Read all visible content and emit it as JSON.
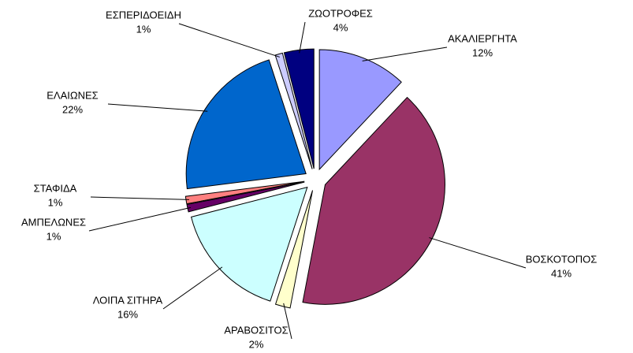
{
  "chart_data": {
    "type": "pie",
    "categories": [
      "ΑΚΑΛΙΕΡΓΗΤΑ",
      "ΒΟΣΚΟΤΟΠΟΣ",
      "ΑΡΑΒΟΣΙΤΟΣ",
      "ΛΟΙΠΑ ΣΙΤΗΡΑ",
      "ΑΜΠΕΛΩΝΕΣ",
      "ΣΤΑΦΙΔΑ",
      "ΕΛΑΙΩΝΕΣ",
      "ΕΣΠΕΡΙΔΟΕΙΔΗ",
      "ΖΩΟΤΡΟΦΕΣ"
    ],
    "values": [
      12,
      41,
      2,
      16,
      1,
      1,
      22,
      1,
      4
    ],
    "value_labels": [
      "12%",
      "41%",
      "2%",
      "16%",
      "1%",
      "1%",
      "22%",
      "1%",
      "4%"
    ],
    "colors": [
      "#9999ff",
      "#993366",
      "#ffffcc",
      "#ccffff",
      "#660066",
      "#ff8080",
      "#0066cc",
      "#ccccff",
      "#000080"
    ]
  }
}
